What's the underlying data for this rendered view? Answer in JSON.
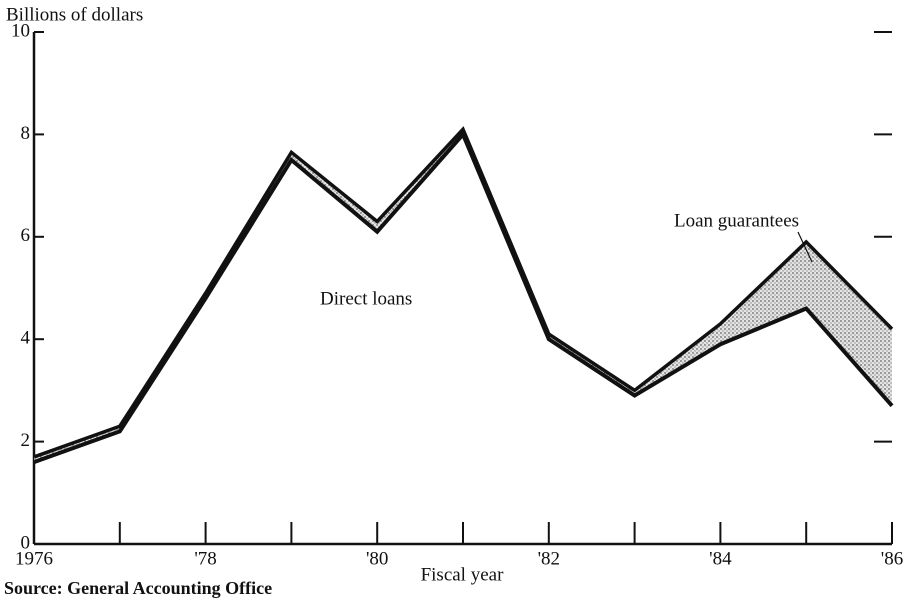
{
  "chart_data": {
    "type": "stacked-line",
    "title": "Billions of dollars",
    "x_label": "Fiscal year",
    "source": "Source: General Accounting Office",
    "x": [
      1976,
      1977,
      1978,
      1979,
      1980,
      1981,
      1982,
      1983,
      1984,
      1985,
      1986
    ],
    "series": [
      {
        "name": "Direct loans",
        "color": "#111111",
        "values": [
          1.6,
          2.2,
          4.8,
          7.5,
          6.1,
          8.0,
          4.0,
          2.9,
          3.9,
          4.6,
          2.7
        ]
      },
      {
        "name": "Loan guarantees",
        "color": "#111111",
        "fill": "#c8c8c8",
        "values": [
          0.1,
          0.1,
          0.1,
          0.15,
          0.2,
          0.1,
          0.1,
          0.1,
          0.4,
          1.3,
          1.5
        ]
      }
    ],
    "xlim": [
      1976,
      1986
    ],
    "xticks": [
      {
        "value": 1976,
        "label": "1976"
      },
      {
        "value": 1978,
        "label": "'78"
      },
      {
        "value": 1980,
        "label": "'80"
      },
      {
        "value": 1982,
        "label": "'82"
      },
      {
        "value": 1984,
        "label": "'84"
      },
      {
        "value": 1986,
        "label": "'86"
      }
    ],
    "ylim": [
      0,
      10
    ],
    "yticks": [
      0,
      2,
      4,
      6,
      8,
      10
    ],
    "grid": false
  }
}
